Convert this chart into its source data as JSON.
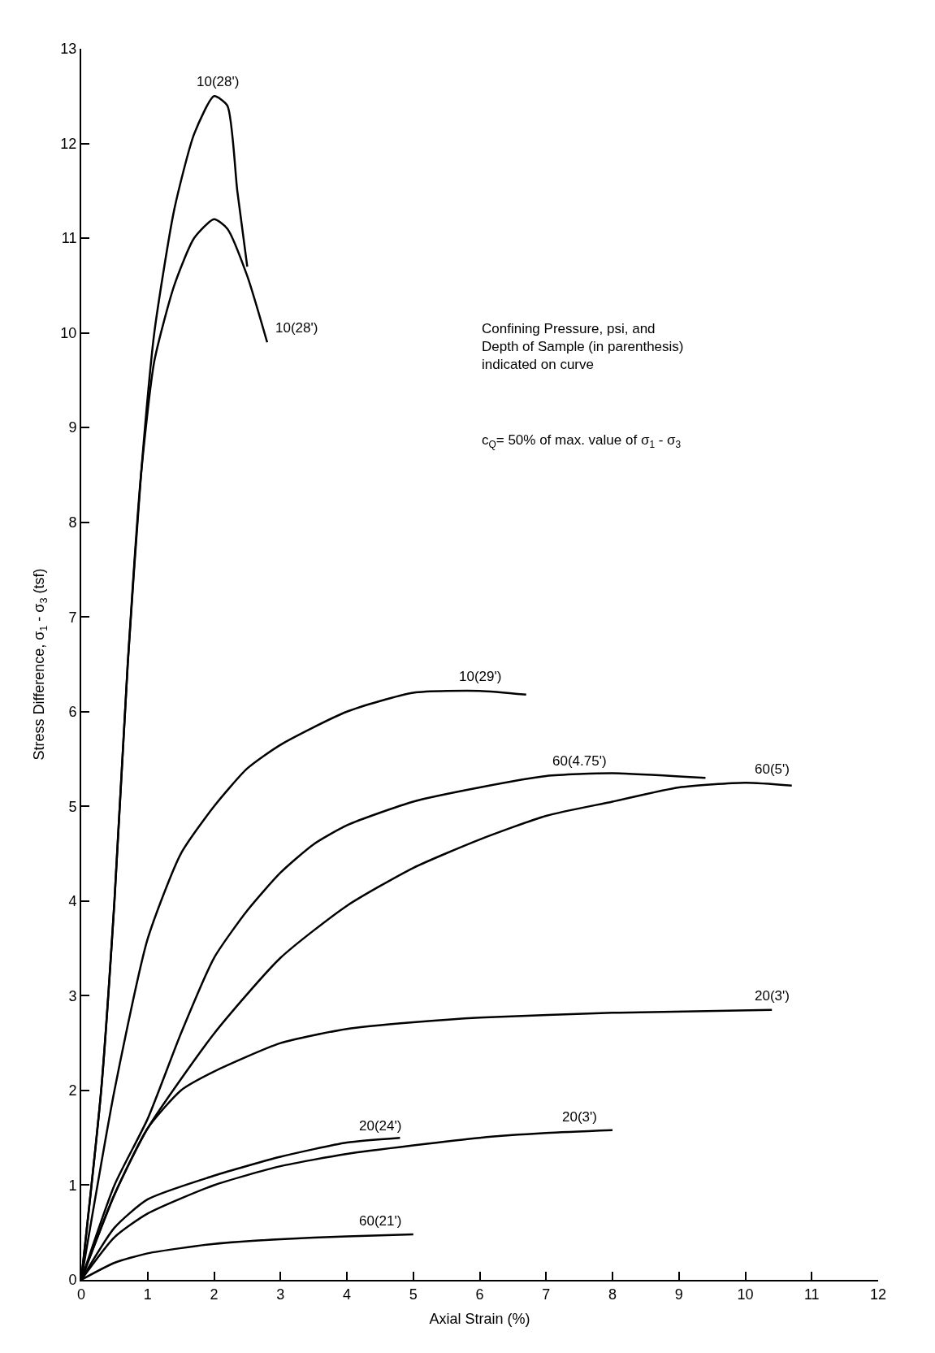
{
  "chart_data": {
    "type": "line",
    "xlabel": "Axial Strain (%)",
    "ylabel": "Stress Difference, σ$_{1}$ - σ$_{3}$ (tsf)",
    "xlim": [
      0,
      12
    ],
    "xticks": [
      0,
      1,
      2,
      3,
      4,
      5,
      6,
      7,
      8,
      9,
      10,
      11,
      12
    ],
    "ylim": [
      0,
      13
    ],
    "yticks": [
      0,
      1,
      2,
      3,
      4,
      5,
      6,
      7,
      8,
      9,
      10,
      11,
      12,
      13
    ],
    "line_style": "solid",
    "marker": "none",
    "series": [
      {
        "color": "#000000",
        "x": [
          0,
          0.3,
          0.5,
          0.7,
          0.9,
          1.1,
          1.4,
          1.7,
          2.0,
          2.2,
          2.35,
          2.5
        ],
        "values": [
          0,
          2,
          4,
          6.5,
          8.5,
          10,
          11.3,
          12.1,
          12.5,
          12.4,
          11.5,
          10.7
        ]
      },
      {
        "color": "#000000",
        "x": [
          0,
          0.3,
          0.5,
          0.7,
          0.9,
          1.1,
          1.4,
          1.7,
          2.0,
          2.2,
          2.5,
          2.8
        ],
        "values": [
          0,
          2,
          4,
          6.5,
          8.5,
          9.7,
          10.5,
          11.0,
          11.2,
          11.1,
          10.6,
          9.9
        ]
      },
      {
        "color": "#000000",
        "x": [
          0,
          0.5,
          1,
          1.5,
          2,
          2.5,
          3,
          4,
          5,
          6,
          6.7
        ],
        "values": [
          0,
          2,
          3.6,
          4.5,
          5.0,
          5.4,
          5.65,
          6.0,
          6.2,
          6.22,
          6.18
        ]
      },
      {
        "color": "#000000",
        "x": [
          0,
          0.5,
          1,
          1.5,
          2,
          2.5,
          3,
          3.5,
          4,
          5,
          6,
          7,
          8,
          9.4
        ],
        "values": [
          0,
          1.0,
          1.7,
          2.6,
          3.4,
          3.9,
          4.3,
          4.6,
          4.8,
          5.05,
          5.2,
          5.32,
          5.35,
          5.3
        ]
      },
      {
        "color": "#000000",
        "x": [
          0,
          0.5,
          1,
          2,
          3,
          4,
          5,
          6,
          7,
          8,
          9,
          10,
          10.7
        ],
        "values": [
          0,
          0.9,
          1.6,
          2.6,
          3.4,
          3.95,
          4.35,
          4.65,
          4.9,
          5.05,
          5.2,
          5.25,
          5.22
        ]
      },
      {
        "color": "#000000",
        "x": [
          0,
          0.5,
          1,
          1.5,
          2,
          3,
          4,
          5,
          6,
          8,
          10.4
        ],
        "values": [
          0,
          0.9,
          1.6,
          2.0,
          2.2,
          2.5,
          2.65,
          2.72,
          2.77,
          2.82,
          2.85
        ]
      },
      {
        "color": "#000000",
        "x": [
          0,
          0.5,
          1,
          2,
          3,
          4,
          4.8
        ],
        "values": [
          0,
          0.55,
          0.85,
          1.1,
          1.3,
          1.45,
          1.5
        ]
      },
      {
        "color": "#000000",
        "x": [
          0,
          0.5,
          1,
          2,
          3,
          4,
          5,
          6,
          7,
          8
        ],
        "values": [
          0,
          0.45,
          0.7,
          1.0,
          1.2,
          1.33,
          1.42,
          1.5,
          1.55,
          1.58
        ]
      },
      {
        "color": "#000000",
        "x": [
          0,
          0.5,
          1,
          2,
          3,
          4,
          5
        ],
        "values": [
          0,
          0.18,
          0.28,
          0.38,
          0.43,
          0.46,
          0.48
        ]
      }
    ],
    "annotations": [
      {
        "text": "10(28')",
        "x": 2.05,
        "y": 12.5
      },
      {
        "text": "10(28')",
        "x": 2.8,
        "y": 9.9
      },
      {
        "text": "10(29')",
        "x": 6,
        "y": 6.22
      },
      {
        "text": "60(4.75')",
        "x": 7.5,
        "y": 5.33
      },
      {
        "text": "60(5')",
        "x": 10.4,
        "y": 5.24
      },
      {
        "text": "20(3')",
        "x": 10.4,
        "y": 2.85
      },
      {
        "text": "20(24')",
        "x": 4.5,
        "y": 1.48
      },
      {
        "text": "20(3')",
        "x": 7.5,
        "y": 1.57
      },
      {
        "text": "60(21')",
        "x": 4.5,
        "y": 0.47
      },
      "Confining Pressure, psi, and\nDepth of Sample (in parenthesis)\nindicated on curve",
      "c$_{Q}$= 50% of max. value of σ$_{1}$ - σ$_{3}$"
    ]
  }
}
